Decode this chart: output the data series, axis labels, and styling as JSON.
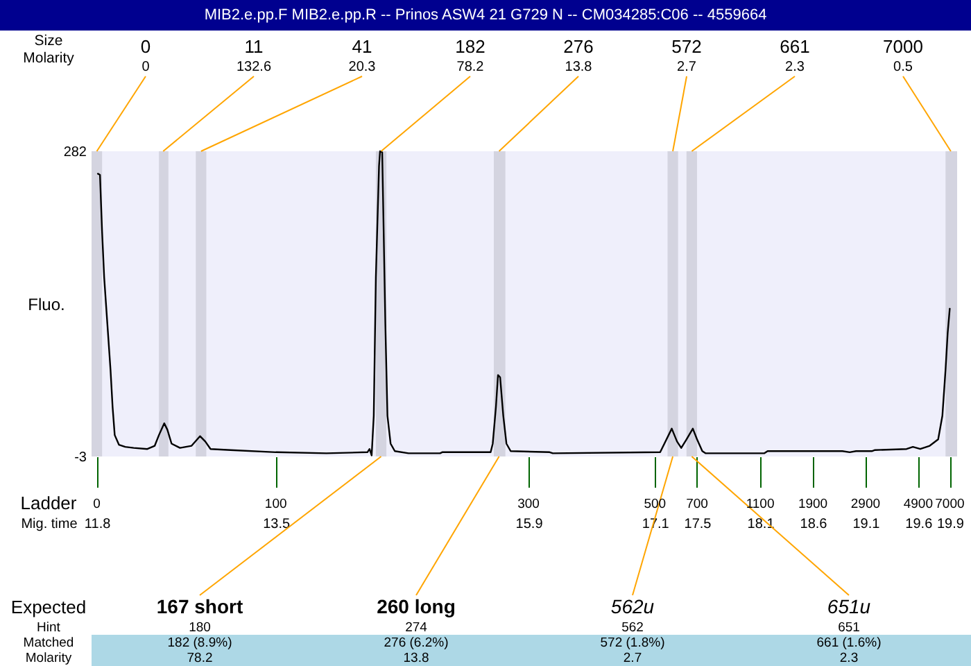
{
  "chart_data": {
    "type": "line",
    "title": "MIB2.e.pp.F  MIB2.e.pp.R -- Prinos ASW4 21 G729 N -- CM034285:C06 -- 4559664",
    "xlabel": "Mig. time",
    "ylabel": "Fluo.",
    "x": [
      11.81,
      11.83,
      11.85,
      11.87,
      11.9,
      11.93,
      11.95,
      11.97,
      12.01,
      12.07,
      12.15,
      12.28,
      12.35,
      12.39,
      12.44,
      12.47,
      12.51,
      12.59,
      12.7,
      12.78,
      12.83,
      12.88,
      13.07,
      13.5,
      13.98,
      14.37,
      14.39,
      14.41,
      14.43,
      14.45,
      14.48,
      14.49,
      14.51,
      14.52,
      14.54,
      14.56,
      14.59,
      14.63,
      14.76,
      15.06,
      15.08,
      15.54,
      15.56,
      15.59,
      15.61,
      15.63,
      15.66,
      15.69,
      15.73,
      16.1,
      16.13,
      17.15,
      17.19,
      17.26,
      17.31,
      17.35,
      17.4,
      17.46,
      17.5,
      17.55,
      17.58,
      18.14,
      18.17,
      18.88,
      18.95,
      19.01,
      19.16,
      19.19,
      19.49,
      19.55,
      19.62,
      19.71,
      19.79,
      19.83,
      19.86,
      19.88,
      19.9
    ],
    "series": [
      {
        "color": "#000000",
        "values": [
          261,
          260,
          207,
          164,
          121,
          78,
          43,
          17,
          8,
          6,
          5,
          4,
          7,
          17,
          28,
          22,
          9,
          5,
          7,
          16,
          11,
          4,
          3,
          1,
          0,
          1,
          4,
          -2,
          35,
          164,
          268,
          282,
          281,
          229,
          121,
          35,
          9,
          2,
          0,
          0,
          1,
          1,
          9,
          43,
          73,
          71,
          35,
          9,
          2,
          1,
          0,
          1,
          9,
          23,
          11,
          5,
          13,
          23,
          13,
          2,
          0,
          0,
          2,
          2,
          1,
          2,
          2,
          3,
          4,
          6,
          4,
          7,
          13,
          35,
          78,
          112,
          135
        ]
      }
    ],
    "xlim": [
      11.75,
      19.97
    ],
    "ylim": [
      -3,
      282
    ],
    "xticks": [
      11.8,
      13.5,
      15.9,
      17.1,
      17.5,
      18.1,
      18.6,
      19.1,
      19.6,
      19.9
    ],
    "yticks": [
      -3,
      282
    ],
    "grid": false,
    "bands": [
      {
        "axis": "x",
        "from": 11.75,
        "to": 11.85,
        "color": "#d4d4e0"
      },
      {
        "axis": "x",
        "from": 12.39,
        "to": 12.48,
        "color": "#d4d4e0"
      },
      {
        "axis": "x",
        "from": 12.74,
        "to": 12.84,
        "color": "#d4d4e0"
      },
      {
        "axis": "x",
        "from": 14.45,
        "to": 14.55,
        "color": "#d4d4e0"
      },
      {
        "axis": "x",
        "from": 15.57,
        "to": 15.68,
        "color": "#d4d4e0"
      },
      {
        "axis": "x",
        "from": 17.22,
        "to": 17.32,
        "color": "#d4d4e0"
      },
      {
        "axis": "x",
        "from": 17.4,
        "to": 17.5,
        "color": "#d4d4e0"
      },
      {
        "axis": "x",
        "from": 19.86,
        "to": 19.97,
        "color": "#d4d4e0"
      }
    ],
    "annotations": [
      "Size",
      "Molarity",
      {
        "text": "0",
        "x": 11.8,
        "y": 282
      },
      "0",
      {
        "text": "11",
        "x": 12.43,
        "y": 282
      },
      "132.6",
      {
        "text": "41",
        "x": 12.79,
        "y": 282
      },
      "20.3",
      {
        "text": "182",
        "x": 14.5,
        "y": 282
      },
      "78.2",
      {
        "text": "276",
        "x": 15.62,
        "y": 282
      },
      "13.8",
      {
        "text": "572",
        "x": 17.27,
        "y": 282
      },
      "2.7",
      {
        "text": "661",
        "x": 17.45,
        "y": 282
      },
      "2.3",
      {
        "text": "7000",
        "x": 19.91,
        "y": 282
      },
      "0.5",
      "Expected",
      "Hint",
      "Matched",
      "Molarity",
      {
        "text": "167 short",
        "x": 14.5,
        "y": -3
      },
      "180",
      "182 (8.9%)",
      "78.2",
      {
        "text": "260 long",
        "x": 15.62,
        "y": -3
      },
      "274",
      "276 (6.2%)",
      "13.8",
      {
        "text": "562u",
        "x": 17.27,
        "y": -3
      },
      "562",
      "572 (1.8%)",
      "2.7",
      {
        "text": "651u",
        "x": 17.45,
        "y": -3
      },
      "651",
      "661 (1.6%)",
      "2.3",
      "Ladder",
      "0",
      "100",
      "300",
      "500",
      "700",
      "1100",
      "1900",
      "2900",
      "4900",
      "7000"
    ]
  }
}
